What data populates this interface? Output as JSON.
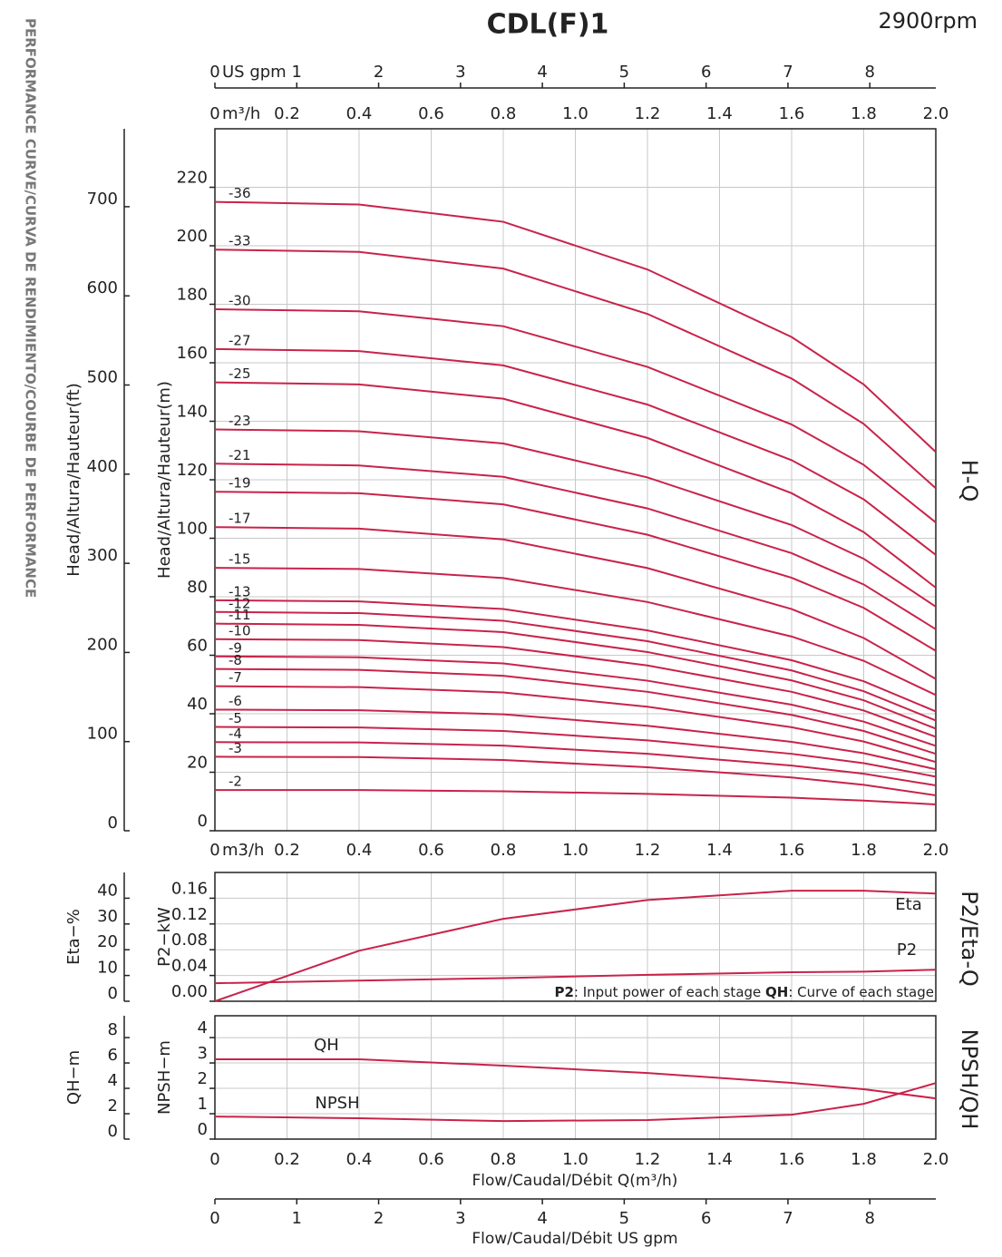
{
  "page_label": "PERFORMANCE CURVE/CURVA DE RENDIMIENTO/COURBE DE PERFORMANCE",
  "chart_data": [
    {
      "type": "line",
      "title": "CDL(F)1",
      "subtitle": "2900rpm",
      "side_label": "H-Q",
      "color": "#c8234a",
      "grid": true,
      "xunit": "m³/h",
      "xunit_bottom": "m3/h",
      "x2unit": "US gpm",
      "xlim": [
        0,
        2
      ],
      "xticks": [
        0,
        0.2,
        0.4,
        0.6,
        0.8,
        {
          "value": 1,
          "label": "1.0"
        },
        1.2,
        1.4,
        1.6,
        1.8,
        {
          "value": 2,
          "label": "2.0"
        }
      ],
      "x2lim": [
        0,
        8.806
      ],
      "x2ticks": [
        0,
        1,
        2,
        3,
        4,
        5,
        6,
        7,
        8
      ],
      "ylabel": "Head/Altura/Hauteur(m)",
      "ylim": [
        0,
        240
      ],
      "yticks": [
        0,
        20,
        40,
        60,
        80,
        100,
        120,
        140,
        160,
        180,
        200,
        220
      ],
      "y2label": "Head/Altura/Hauteur(ft)",
      "y2lim": [
        0,
        787.4
      ],
      "y2ticks": [
        0,
        100,
        200,
        300,
        400,
        500,
        600,
        700
      ],
      "x": [
        0,
        0.4,
        0.8,
        1.2,
        1.6,
        1.8,
        2.0
      ],
      "series": [
        {
          "name": "-36",
          "values": [
            215,
            214.1,
            208.2,
            191.9,
            168.8,
            152.6,
            129.5
          ]
        },
        {
          "name": "-33",
          "values": [
            198.7,
            197.9,
            192.2,
            176.7,
            154.6,
            139.1,
            117.1
          ]
        },
        {
          "name": "-30",
          "values": [
            178.3,
            177.6,
            172.5,
            158.6,
            138.9,
            125.1,
            105.4
          ]
        },
        {
          "name": "-27",
          "values": [
            164.7,
            164.0,
            159.1,
            145.7,
            126.7,
            113.3,
            94.3
          ]
        },
        {
          "name": "-25",
          "values": [
            153.3,
            152.6,
            147.7,
            134.3,
            115.4,
            102.1,
            83.1
          ]
        },
        {
          "name": "-23",
          "values": [
            137.2,
            136.6,
            132.4,
            120.8,
            104.5,
            93.0,
            76.6
          ]
        },
        {
          "name": "-21",
          "values": [
            125.5,
            124.9,
            121.0,
            110.2,
            94.9,
            84.2,
            68.9
          ]
        },
        {
          "name": "-19",
          "values": [
            115.9,
            115.4,
            111.6,
            101.2,
            86.5,
            76.2,
            61.5
          ]
        },
        {
          "name": "-17",
          "values": [
            103.8,
            103.3,
            99.6,
            89.8,
            75.8,
            65.9,
            51.9
          ]
        },
        {
          "name": "-15",
          "values": [
            89.9,
            89.5,
            86.4,
            78.2,
            66.4,
            58.1,
            46.4
          ]
        },
        {
          "name": "-13",
          "values": [
            78.8,
            78.4,
            75.8,
            68.5,
            58.3,
            51.1,
            40.8
          ]
        },
        {
          "name": "-12",
          "values": [
            74.8,
            74.4,
            71.8,
            64.8,
            54.8,
            47.7,
            37.7
          ]
        },
        {
          "name": "-11",
          "values": [
            70.8,
            70.4,
            67.9,
            61.1,
            51.4,
            44.6,
            34.9
          ]
        },
        {
          "name": "-10",
          "values": [
            65.5,
            65.2,
            62.8,
            56.5,
            47.5,
            41.1,
            32.1
          ]
        },
        {
          "name": "-9",
          "values": [
            59.6,
            59.3,
            57.2,
            51.3,
            43.1,
            37.3,
            29.0
          ]
        },
        {
          "name": "-8",
          "values": [
            55.3,
            55.0,
            53.0,
            47.5,
            39.6,
            34.1,
            26.3
          ]
        },
        {
          "name": "-7",
          "values": [
            49.4,
            49.1,
            47.3,
            42.4,
            35.4,
            30.5,
            23.5
          ]
        },
        {
          "name": "-6",
          "values": [
            41.4,
            41.2,
            39.8,
            35.9,
            30.4,
            26.5,
            21.0
          ]
        },
        {
          "name": "-5",
          "values": [
            35.5,
            35.3,
            34.1,
            30.9,
            26.3,
            23.1,
            18.5
          ]
        },
        {
          "name": "-4",
          "values": [
            30.3,
            30.2,
            29.1,
            26.3,
            22.3,
            19.5,
            15.5
          ]
        },
        {
          "name": "-3",
          "values": [
            25.3,
            25.2,
            24.2,
            21.7,
            18.2,
            15.7,
            12.1
          ]
        },
        {
          "name": "-2",
          "values": [
            13.9,
            13.9,
            13.5,
            12.6,
            11.3,
            10.3,
            9.0
          ]
        }
      ]
    },
    {
      "type": "line",
      "side_label": "P2/Eta-Q",
      "color": "#c8234a",
      "grid": true,
      "note": [
        "P2",
        ": Input power of each stage ",
        "QH",
        ": Curve of each stage"
      ],
      "xlim": [
        0,
        2
      ],
      "xticks": [
        0,
        0.2,
        0.4,
        0.6,
        0.8,
        {
          "value": 1,
          "label": "1.0"
        },
        1.2,
        1.4,
        1.6,
        1.8,
        {
          "value": 2,
          "label": "2.0"
        }
      ],
      "ylabel": "P2−kW",
      "ylim": [
        0,
        0.2
      ],
      "yticks": [
        {
          "value": 0,
          "label": "0.00"
        },
        {
          "value": 0.04,
          "label": "0.04"
        },
        {
          "value": 0.08,
          "label": "0.08"
        },
        {
          "value": 0.12,
          "label": "0.12"
        },
        {
          "value": 0.16,
          "label": "0.16"
        }
      ],
      "y2label": "Eta−%",
      "y2lim": [
        0,
        50
      ],
      "y2ticks": [
        0,
        10,
        20,
        30,
        40
      ],
      "x": [
        0,
        0.4,
        0.8,
        1.2,
        1.6,
        1.8,
        2.0
      ],
      "series": [
        {
          "name": "Eta",
          "axis": "y2",
          "values": [
            0,
            19.6,
            32,
            39.3,
            42.9,
            42.9,
            41.8
          ]
        },
        {
          "name": "P2",
          "values": [
            0.028,
            0.032,
            0.036,
            0.041,
            0.045,
            0.046,
            0.049
          ]
        }
      ]
    },
    {
      "type": "line",
      "side_label": "NPSH/QH",
      "color": "#c8234a",
      "grid": true,
      "xlabel": "Flow/Caudal/Débit Q(m³/h)",
      "x2label": "Flow/Caudal/Débit  US gpm",
      "xlim": [
        0,
        2
      ],
      "xticks": [
        0,
        0.2,
        0.4,
        0.6,
        0.8,
        {
          "value": 1,
          "label": "1.0"
        },
        1.2,
        1.4,
        1.6,
        1.8,
        {
          "value": 2,
          "label": "2.0"
        }
      ],
      "x2lim": [
        0,
        8.806
      ],
      "x2ticks": [
        0,
        1,
        2,
        3,
        4,
        5,
        6,
        7,
        8
      ],
      "ylabel": "NPSH−m",
      "ylim": [
        0,
        4.86
      ],
      "yticks": [
        0,
        1,
        2,
        3,
        4
      ],
      "y2label": "QH−m",
      "y2lim": [
        0,
        9.72
      ],
      "y2ticks": [
        0,
        2,
        4,
        6,
        8
      ],
      "x": [
        0,
        0.4,
        0.8,
        1.2,
        1.6,
        1.8,
        2.0
      ],
      "series": [
        {
          "name": "QH",
          "axis": "y2",
          "values": [
            6.29,
            6.29,
            5.79,
            5.21,
            4.43,
            3.93,
            3.21
          ]
        },
        {
          "name": "NPSH",
          "values": [
            0.89,
            0.82,
            0.71,
            0.75,
            0.96,
            1.39,
            2.21
          ]
        }
      ]
    }
  ]
}
